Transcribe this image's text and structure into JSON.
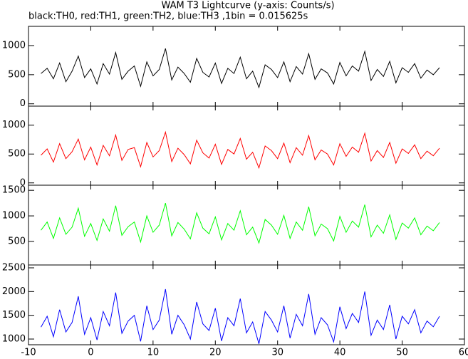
{
  "chart_data": [
    {
      "type": "line",
      "title": "WAM T3 Lightcurve (y-axis: Counts/s)",
      "subtitle": "black:TH0, red:TH1, green:TH2, blue:TH3 ,1bin = 0.015625s",
      "x": [
        -8,
        -7,
        -6,
        -5,
        -4,
        -3,
        -2,
        -1,
        0,
        1,
        2,
        3,
        4,
        5,
        6,
        7,
        8,
        9,
        10,
        11,
        12,
        13,
        14,
        15,
        16,
        17,
        18,
        19,
        20,
        21,
        22,
        23,
        24,
        25,
        26,
        27,
        28,
        29,
        30,
        31,
        32,
        33,
        34,
        35,
        36,
        37,
        38,
        39,
        40,
        41,
        42,
        43,
        44,
        45,
        46,
        47,
        48,
        49,
        50,
        51,
        52,
        53,
        54,
        55,
        56
      ],
      "series": [
        {
          "color": "#000000",
          "values": [
            520,
            610,
            430,
            700,
            380,
            560,
            820,
            450,
            600,
            340,
            690,
            510,
            880,
            420,
            560,
            650,
            300,
            720,
            480,
            590,
            950,
            410,
            630,
            520,
            370,
            780,
            540,
            460,
            700,
            350,
            610,
            520,
            800,
            430,
            560,
            280,
            670,
            590,
            450,
            720,
            380,
            640,
            510,
            860,
            420,
            600,
            530,
            340,
            710,
            480,
            650,
            560,
            900,
            400,
            590,
            470,
            730,
            360,
            620,
            540,
            690,
            440,
            580,
            500,
            620
          ]
        }
      ],
      "xlim": [
        -10,
        60
      ],
      "ylim": [
        -40,
        1330
      ],
      "yticks": [
        0,
        500,
        1000
      ]
    },
    {
      "type": "line",
      "x": [
        -8,
        -7,
        -6,
        -5,
        -4,
        -3,
        -2,
        -1,
        0,
        1,
        2,
        3,
        4,
        5,
        6,
        7,
        8,
        9,
        10,
        11,
        12,
        13,
        14,
        15,
        16,
        17,
        18,
        19,
        20,
        21,
        22,
        23,
        24,
        25,
        26,
        27,
        28,
        29,
        30,
        31,
        32,
        33,
        34,
        35,
        36,
        37,
        38,
        39,
        40,
        41,
        42,
        43,
        44,
        45,
        46,
        47,
        48,
        49,
        50,
        51,
        52,
        53,
        54,
        55,
        56
      ],
      "series": [
        {
          "color": "#ff0000",
          "values": [
            480,
            590,
            360,
            680,
            420,
            540,
            760,
            400,
            620,
            310,
            650,
            470,
            830,
            390,
            580,
            610,
            280,
            700,
            450,
            560,
            880,
            370,
            600,
            490,
            330,
            740,
            520,
            430,
            670,
            320,
            580,
            500,
            770,
            410,
            530,
            260,
            640,
            560,
            420,
            690,
            350,
            610,
            480,
            820,
            400,
            570,
            500,
            310,
            680,
            460,
            620,
            530,
            860,
            380,
            560,
            440,
            700,
            340,
            590,
            510,
            660,
            420,
            550,
            470,
            600
          ]
        }
      ],
      "xlim": [
        -10,
        60
      ],
      "ylim": [
        -40,
        1330
      ],
      "yticks": [
        0,
        500,
        1000
      ]
    },
    {
      "type": "line",
      "x": [
        -8,
        -7,
        -6,
        -5,
        -4,
        -3,
        -2,
        -1,
        0,
        1,
        2,
        3,
        4,
        5,
        6,
        7,
        8,
        9,
        10,
        11,
        12,
        13,
        14,
        15,
        16,
        17,
        18,
        19,
        20,
        21,
        22,
        23,
        24,
        25,
        26,
        27,
        28,
        29,
        30,
        31,
        32,
        33,
        34,
        35,
        36,
        37,
        38,
        39,
        40,
        41,
        42,
        43,
        44,
        45,
        46,
        47,
        48,
        49,
        50,
        51,
        52,
        53,
        54,
        55,
        56
      ],
      "series": [
        {
          "color": "#00ff00",
          "values": [
            720,
            880,
            560,
            960,
            640,
            780,
            1150,
            600,
            850,
            520,
            940,
            700,
            1200,
            620,
            790,
            880,
            490,
            1000,
            680,
            820,
            1250,
            610,
            870,
            740,
            550,
            1060,
            760,
            650,
            980,
            530,
            850,
            720,
            1100,
            630,
            780,
            470,
            930,
            820,
            640,
            1010,
            560,
            880,
            720,
            1180,
            610,
            840,
            750,
            510,
            990,
            680,
            900,
            780,
            1220,
            590,
            820,
            660,
            1020,
            540,
            860,
            760,
            960,
            630,
            800,
            710,
            870
          ]
        }
      ],
      "xlim": [
        -10,
        60
      ],
      "ylim": [
        40,
        1600
      ],
      "yticks": [
        500,
        1000,
        1500
      ]
    },
    {
      "type": "line",
      "x": [
        -8,
        -7,
        -6,
        -5,
        -4,
        -3,
        -2,
        -1,
        0,
        1,
        2,
        3,
        4,
        5,
        6,
        7,
        8,
        9,
        10,
        11,
        12,
        13,
        14,
        15,
        16,
        17,
        18,
        19,
        20,
        21,
        22,
        23,
        24,
        25,
        26,
        27,
        28,
        29,
        30,
        31,
        32,
        33,
        34,
        35,
        36,
        37,
        38,
        39,
        40,
        41,
        42,
        43,
        44,
        45,
        46,
        47,
        48,
        49,
        50,
        51,
        52,
        53,
        54,
        55,
        56
      ],
      "series": [
        {
          "color": "#0000ff",
          "values": [
            1250,
            1480,
            1050,
            1620,
            1150,
            1350,
            1900,
            1100,
            1450,
            980,
            1580,
            1280,
            1980,
            1120,
            1380,
            1500,
            950,
            1700,
            1200,
            1400,
            2050,
            1100,
            1500,
            1300,
            1000,
            1780,
            1320,
            1180,
            1650,
            960,
            1450,
            1280,
            1850,
            1130,
            1360,
            900,
            1580,
            1400,
            1150,
            1700,
            1020,
            1520,
            1280,
            1950,
            1100,
            1450,
            1300,
            940,
            1680,
            1220,
            1540,
            1350,
            2000,
            1080,
            1400,
            1200,
            1720,
            1000,
            1480,
            1320,
            1620,
            1130,
            1380,
            1260,
            1480
          ]
        }
      ],
      "xlim": [
        -10,
        60
      ],
      "xticks": [
        -10,
        0,
        10,
        20,
        30,
        40,
        50,
        60
      ],
      "ylim": [
        880,
        2560
      ],
      "yticks": [
        1000,
        1500,
        2000,
        2500
      ]
    }
  ]
}
